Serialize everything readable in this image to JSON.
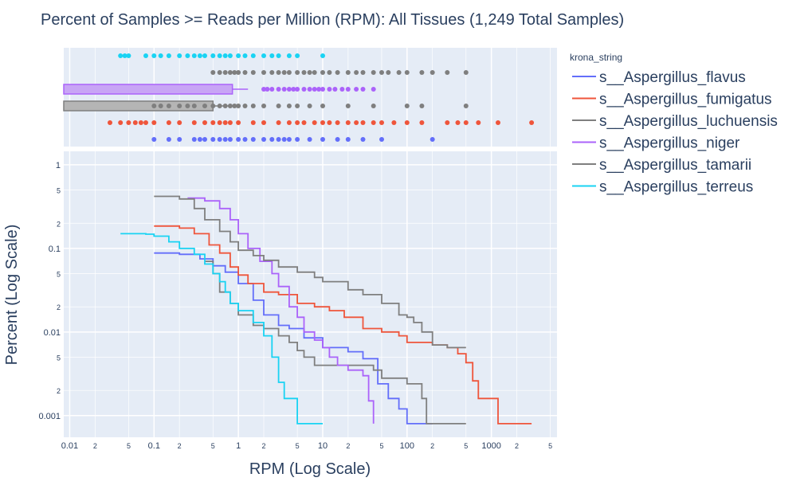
{
  "chart_data": {
    "type": "line",
    "title": "Percent of Samples >= Reads per Million (RPM): All Tissues (1,249 Total Samples)",
    "xlabel": "RPM (Log Scale)",
    "ylabel": "Percent (Log Scale)",
    "x_scale": "log",
    "y_scale": "log",
    "xlim": [
      0.0085,
      6000
    ],
    "ylim": [
      0.00055,
      1.45
    ],
    "x_tick_labels": [
      {
        "v": 0.01,
        "t": "0.01",
        "major": true
      },
      {
        "v": 0.02,
        "t": "2",
        "major": false
      },
      {
        "v": 0.05,
        "t": "5",
        "major": false
      },
      {
        "v": 0.1,
        "t": "0.1",
        "major": true
      },
      {
        "v": 0.2,
        "t": "2",
        "major": false
      },
      {
        "v": 0.5,
        "t": "5",
        "major": false
      },
      {
        "v": 1,
        "t": "1",
        "major": true
      },
      {
        "v": 2,
        "t": "2",
        "major": false
      },
      {
        "v": 5,
        "t": "5",
        "major": false
      },
      {
        "v": 10,
        "t": "10",
        "major": true
      },
      {
        "v": 20,
        "t": "2",
        "major": false
      },
      {
        "v": 50,
        "t": "5",
        "major": false
      },
      {
        "v": 100,
        "t": "100",
        "major": true
      },
      {
        "v": 200,
        "t": "2",
        "major": false
      },
      {
        "v": 500,
        "t": "5",
        "major": false
      },
      {
        "v": 1000,
        "t": "1000",
        "major": true
      },
      {
        "v": 2000,
        "t": "2",
        "major": false
      },
      {
        "v": 5000,
        "t": "5",
        "major": false
      }
    ],
    "y_tick_labels": [
      {
        "v": 0.001,
        "t": "0.001",
        "major": true
      },
      {
        "v": 0.002,
        "t": "2",
        "major": false
      },
      {
        "v": 0.005,
        "t": "5",
        "major": false
      },
      {
        "v": 0.01,
        "t": "0.01",
        "major": true
      },
      {
        "v": 0.02,
        "t": "2",
        "major": false
      },
      {
        "v": 0.05,
        "t": "5",
        "major": false
      },
      {
        "v": 0.1,
        "t": "0.1",
        "major": true
      },
      {
        "v": 0.2,
        "t": "2",
        "major": false
      },
      {
        "v": 0.5,
        "t": "5",
        "major": false
      },
      {
        "v": 1,
        "t": "1",
        "major": true
      }
    ],
    "legend": {
      "title": "krona_string",
      "position": "right"
    },
    "series": [
      {
        "name": "s__Aspergillus_flavus",
        "color": "#636efa",
        "lane": 6,
        "points": [
          [
            0.1,
            0.088
          ],
          [
            0.2,
            0.085
          ],
          [
            0.35,
            0.075
          ],
          [
            0.5,
            0.062
          ],
          [
            0.7,
            0.052
          ],
          [
            1,
            0.038
          ],
          [
            1.5,
            0.024
          ],
          [
            2,
            0.016
          ],
          [
            3,
            0.012
          ],
          [
            4,
            0.011
          ],
          [
            6,
            0.0085
          ],
          [
            10,
            0.0065
          ],
          [
            20,
            0.0058
          ],
          [
            30,
            0.0048
          ],
          [
            45,
            0.0024
          ],
          [
            60,
            0.0016
          ],
          [
            80,
            0.0012
          ],
          [
            100,
            0.0008
          ],
          [
            200,
            0.0008
          ]
        ],
        "dots": [
          0.1,
          0.15,
          0.2,
          0.3,
          0.35,
          0.4,
          0.5,
          0.6,
          0.7,
          0.8,
          1,
          1.2,
          1.5,
          2,
          2.5,
          3,
          3.5,
          4,
          5,
          7,
          10,
          15,
          20,
          30,
          50,
          200
        ]
      },
      {
        "name": "s__Aspergillus_fumigatus",
        "color": "#ef553b",
        "lane": 5,
        "points": [
          [
            0.1,
            0.185
          ],
          [
            0.2,
            0.175
          ],
          [
            0.3,
            0.15
          ],
          [
            0.45,
            0.11
          ],
          [
            0.6,
            0.088
          ],
          [
            0.8,
            0.06
          ],
          [
            1,
            0.048
          ],
          [
            1.3,
            0.038
          ],
          [
            2,
            0.03
          ],
          [
            3,
            0.028
          ],
          [
            5,
            0.022
          ],
          [
            8,
            0.02
          ],
          [
            12,
            0.018
          ],
          [
            18,
            0.015
          ],
          [
            30,
            0.011
          ],
          [
            50,
            0.01
          ],
          [
            80,
            0.009
          ],
          [
            100,
            0.0075
          ],
          [
            200,
            0.007
          ],
          [
            300,
            0.0065
          ],
          [
            400,
            0.0055
          ],
          [
            500,
            0.0043
          ],
          [
            600,
            0.0026
          ],
          [
            700,
            0.0016
          ],
          [
            1000,
            0.0016
          ],
          [
            1200,
            0.0008
          ],
          [
            3000,
            0.0008
          ]
        ],
        "dots": [
          0.03,
          0.04,
          0.05,
          0.06,
          0.07,
          0.08,
          0.1,
          0.15,
          0.2,
          0.3,
          0.4,
          0.5,
          0.6,
          0.7,
          0.8,
          1,
          1.5,
          2,
          3,
          4,
          5,
          6,
          8,
          10,
          12,
          15,
          20,
          25,
          30,
          40,
          50,
          70,
          100,
          150,
          300,
          400,
          500,
          700,
          1200,
          3000
        ]
      },
      {
        "name": "s__Aspergillus_luchuensis",
        "color": "#7f7f7f",
        "lane": 4,
        "points": [
          [
            0.4,
            0.07
          ],
          [
            0.5,
            0.05
          ],
          [
            0.6,
            0.03
          ],
          [
            0.8,
            0.022
          ],
          [
            1,
            0.016
          ],
          [
            1.5,
            0.012
          ],
          [
            2,
            0.011
          ],
          [
            3,
            0.009
          ],
          [
            4,
            0.0075
          ],
          [
            5,
            0.006
          ],
          [
            6,
            0.005
          ],
          [
            8,
            0.004
          ],
          [
            10,
            0.004
          ],
          [
            20,
            0.004
          ],
          [
            30,
            0.004
          ],
          [
            40,
            0.0035
          ],
          [
            50,
            0.0028
          ],
          [
            80,
            0.0028
          ],
          [
            100,
            0.0024
          ],
          [
            150,
            0.0016
          ],
          [
            170,
            0.0008
          ],
          [
            500,
            0.0008
          ]
        ],
        "dots": [
          0.1,
          0.12,
          0.15,
          0.2,
          0.25,
          0.3,
          0.4,
          0.5,
          0.6,
          0.7,
          0.8,
          0.9,
          1,
          1.2,
          1.5,
          2,
          3,
          4,
          5,
          7,
          10,
          20,
          40,
          100,
          150,
          500
        ]
      },
      {
        "name": "s__Aspergillus_niger",
        "color": "#ab63fa",
        "lane": 3,
        "points": [
          [
            0.25,
            0.4
          ],
          [
            0.4,
            0.37
          ],
          [
            0.6,
            0.3
          ],
          [
            0.8,
            0.22
          ],
          [
            1,
            0.15
          ],
          [
            1.3,
            0.1
          ],
          [
            1.8,
            0.07
          ],
          [
            2.5,
            0.05
          ],
          [
            3,
            0.035
          ],
          [
            4,
            0.02
          ],
          [
            5,
            0.015
          ],
          [
            6,
            0.01
          ],
          [
            8,
            0.008
          ],
          [
            10,
            0.0065
          ],
          [
            12,
            0.005
          ],
          [
            15,
            0.004
          ],
          [
            20,
            0.0035
          ],
          [
            30,
            0.003
          ],
          [
            35,
            0.0015
          ],
          [
            40,
            0.0008
          ]
        ],
        "dots": [
          2,
          2.2,
          2.5,
          3,
          3.5,
          4,
          4.5,
          5,
          6,
          7,
          8,
          9,
          10,
          12,
          14,
          17,
          20,
          25,
          30,
          40
        ]
      },
      {
        "name": "s__Aspergillus_tamarii",
        "color": "#7f7f7f",
        "lane": 2,
        "points": [
          [
            0.1,
            0.42
          ],
          [
            0.2,
            0.39
          ],
          [
            0.3,
            0.3
          ],
          [
            0.4,
            0.22
          ],
          [
            0.6,
            0.16
          ],
          [
            0.8,
            0.12
          ],
          [
            1,
            0.095
          ],
          [
            1.5,
            0.082
          ],
          [
            2,
            0.072
          ],
          [
            3,
            0.06
          ],
          [
            5,
            0.052
          ],
          [
            8,
            0.045
          ],
          [
            10,
            0.04
          ],
          [
            20,
            0.032
          ],
          [
            30,
            0.028
          ],
          [
            50,
            0.022
          ],
          [
            80,
            0.016
          ],
          [
            100,
            0.015
          ],
          [
            120,
            0.013
          ],
          [
            150,
            0.01
          ],
          [
            200,
            0.007
          ],
          [
            300,
            0.0065
          ],
          [
            500,
            0.0065
          ]
        ],
        "dots": [
          0.5,
          0.6,
          0.7,
          0.8,
          0.9,
          1,
          1.2,
          1.5,
          2,
          2.5,
          3,
          3.5,
          4,
          5,
          6,
          7,
          8,
          10,
          12,
          15,
          20,
          25,
          30,
          40,
          50,
          60,
          80,
          100,
          150,
          200,
          300,
          500
        ]
      },
      {
        "name": "s__Aspergillus_terreus",
        "color": "#19d3f3",
        "lane": 1,
        "points": [
          [
            0.04,
            0.15
          ],
          [
            0.08,
            0.148
          ],
          [
            0.1,
            0.14
          ],
          [
            0.15,
            0.12
          ],
          [
            0.2,
            0.1
          ],
          [
            0.3,
            0.085
          ],
          [
            0.4,
            0.065
          ],
          [
            0.5,
            0.05
          ],
          [
            0.6,
            0.04
          ],
          [
            0.7,
            0.03
          ],
          [
            0.8,
            0.022
          ],
          [
            1,
            0.018
          ],
          [
            1.5,
            0.013
          ],
          [
            2,
            0.009
          ],
          [
            2.5,
            0.005
          ],
          [
            3,
            0.0025
          ],
          [
            3.5,
            0.0016
          ],
          [
            4,
            0.0016
          ],
          [
            5,
            0.0008
          ],
          [
            10,
            0.0008
          ]
        ],
        "dots": [
          0.04,
          0.045,
          0.05,
          0.08,
          0.1,
          0.12,
          0.15,
          0.2,
          0.25,
          0.3,
          0.35,
          0.4,
          0.5,
          0.6,
          0.7,
          0.8,
          1,
          1.2,
          1.5,
          2,
          2.5,
          3,
          4,
          5,
          10
        ]
      }
    ],
    "boxes": [
      {
        "series": "s__Aspergillus_luchuensis",
        "lane": 4,
        "q1": 0.0085,
        "q3": 0.5,
        "whisker_high": 0.9,
        "fill": "#b5b5b5",
        "line": "#7f7f7f"
      },
      {
        "series": "s__Aspergillus_niger",
        "lane": 3,
        "q1": 0.0085,
        "q3": 0.85,
        "whisker_high": 1.3,
        "fill": "#c8a5f5",
        "line": "#ab63fa"
      }
    ]
  }
}
